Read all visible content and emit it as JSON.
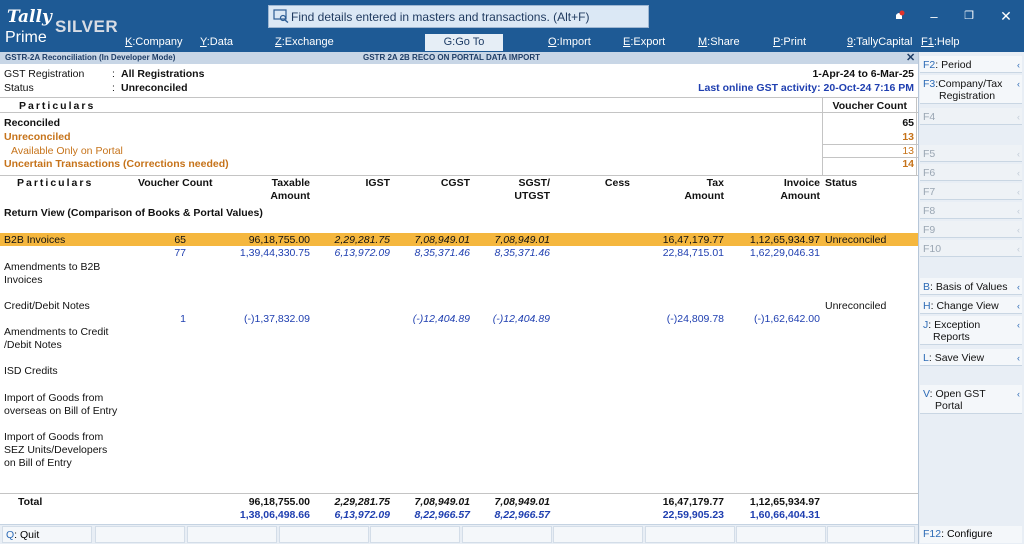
{
  "app": {
    "logo_tally": "Tally",
    "logo_silver": "SILVER",
    "logo_prime": "Prime"
  },
  "search": {
    "placeholder": "Find details entered in masters and transactions. (Alt+F)"
  },
  "menu": [
    {
      "key": "K",
      "label": "Company"
    },
    {
      "key": "Y",
      "label": "Data"
    },
    {
      "key": "Z",
      "label": "Exchange"
    },
    {
      "key": "G",
      "label": "Go To"
    },
    {
      "key": "O",
      "label": "Import"
    },
    {
      "key": "E",
      "label": "Export"
    },
    {
      "key": "M",
      "label": "Share"
    },
    {
      "key": "P",
      "label": "Print"
    },
    {
      "key": "9",
      "label": "TallyCapital"
    },
    {
      "key": "F1",
      "label": "Help"
    }
  ],
  "titlebar": {
    "left": "GSTR-2A Reconciliation (In Developer Mode)",
    "center": "GSTR 2A 2B RECO ON PORTAL DATA IMPORT",
    "close": "✕"
  },
  "info": {
    "gst_reg_label": "GST Registration",
    "gst_reg_value": "All Registrations",
    "status_label": "Status",
    "status_value": "Unreconciled",
    "period": "1-Apr-24 to 6-Mar-25",
    "last_activity": "Last online GST activity: 20-Oct-24 7:16 PM"
  },
  "summary": {
    "particulars_header": "Particulars",
    "voucher_count_header": "Voucher Count",
    "rows": [
      {
        "label": "Reconciled",
        "count": "65"
      },
      {
        "label": "Unreconciled",
        "count": "13"
      },
      {
        "label": "Available Only on Portal",
        "count": "13"
      },
      {
        "label": "Uncertain Transactions (Corrections needed)",
        "count": "14"
      }
    ]
  },
  "table": {
    "headers": {
      "particulars": "Particulars",
      "voucher_count": "Voucher Count",
      "taxable_1": "Taxable",
      "taxable_2": "Amount",
      "igst": "IGST",
      "cgst": "CGST",
      "sgst_1": "SGST/",
      "sgst_2": "UTGST",
      "cess": "Cess",
      "tax_1": "Tax",
      "tax_2": "Amount",
      "invoice_1": "Invoice",
      "invoice_2": "Amount",
      "status": "Status"
    },
    "section_title": "Return View (Comparison of Books & Portal Values)",
    "b2b": {
      "label": "B2B Invoices",
      "books": {
        "count": "65",
        "taxable": "96,18,755.00",
        "igst": "2,29,281.75",
        "cgst": "7,08,949.01",
        "sgst": "7,08,949.01",
        "tax": "16,47,179.77",
        "invoice": "1,12,65,934.97",
        "status": "Unreconciled"
      },
      "portal": {
        "count": "77",
        "taxable": "1,39,44,330.75",
        "igst": "6,13,972.09",
        "cgst": "8,35,371.46",
        "sgst": "8,35,371.46",
        "tax": "22,84,715.01",
        "invoice": "1,62,29,046.31"
      }
    },
    "amend_b2b_1": "Amendments to B2B",
    "amend_b2b_2": "Invoices",
    "cdn": {
      "label": "Credit/Debit Notes",
      "status": "Unreconciled",
      "portal": {
        "count": "1",
        "taxable": "(-)1,37,832.09",
        "cgst": "(-)12,404.89",
        "sgst": "(-)12,404.89",
        "tax": "(-)24,809.78",
        "invoice": "(-)1,62,642.00"
      }
    },
    "amend_cdn_1": "Amendments to Credit",
    "amend_cdn_2": "/Debit Notes",
    "isd": "ISD Credits",
    "import_boe_1": "Import of Goods from",
    "import_boe_2": "overseas on Bill of Entry",
    "import_sez_1": "Import of Goods from",
    "import_sez_2": "SEZ Units/Developers",
    "import_sez_3": "on Bill of Entry",
    "total": {
      "label": "Total",
      "books": {
        "taxable": "96,18,755.00",
        "igst": "2,29,281.75",
        "cgst": "7,08,949.01",
        "sgst": "7,08,949.01",
        "tax": "16,47,179.77",
        "invoice": "1,12,65,934.97"
      },
      "portal": {
        "taxable": "1,38,06,498.66",
        "igst": "6,13,972.09",
        "cgst": "8,22,966.57",
        "sgst": "8,22,966.57",
        "tax": "22,59,905.23",
        "invoice": "1,60,66,404.31"
      }
    }
  },
  "right_buttons": {
    "f2": {
      "key": "F2",
      "label": "Period"
    },
    "f3": {
      "key": "F3",
      "label": "Company/Tax",
      "label2": "Registration"
    },
    "f4": "F4",
    "f5": "F5",
    "f6": "F6",
    "f7": "F7",
    "f8": "F8",
    "f9": "F9",
    "f10": "F10",
    "b": {
      "key": "B",
      "label": "Basis of Values"
    },
    "h": {
      "key": "H",
      "label": "Change View"
    },
    "j": {
      "key": "J",
      "label": "Exception",
      "label2": "Reports"
    },
    "l": {
      "key": "L",
      "label": "Save View"
    },
    "v": {
      "key": "V",
      "label": "Open GST",
      "label2": "Portal"
    },
    "f12": {
      "key": "F12",
      "label": "Configure"
    }
  },
  "bottom": {
    "quit_key": "Q",
    "quit_label": "Quit"
  },
  "colors": {
    "topbar": "#1e5a95",
    "highlight": "#f5b73e",
    "portal_values": "#1f3fb0",
    "warning": "#c6731a"
  }
}
